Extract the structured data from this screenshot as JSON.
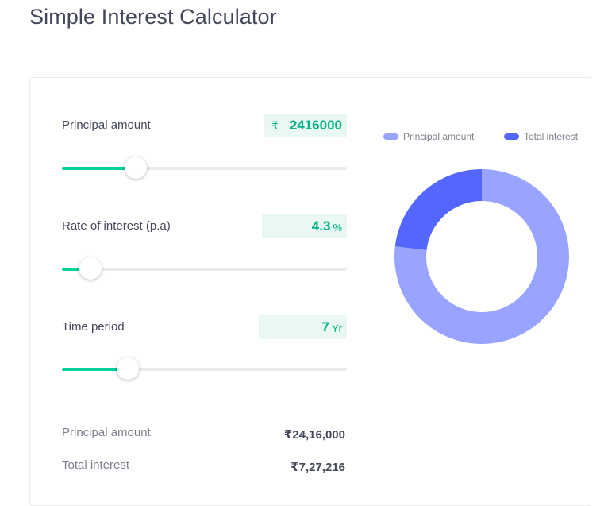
{
  "header": {
    "title": "Simple Interest Calculator"
  },
  "inputs": {
    "principal": {
      "label": "Principal amount",
      "prefix": "₹",
      "value": "2416000",
      "fraction": 0.26
    },
    "rate": {
      "label": "Rate of interest (p.a)",
      "value": "4.3",
      "suffix": "%",
      "fraction": 0.1
    },
    "time": {
      "label": "Time period",
      "value": "7",
      "suffix": "Yr",
      "fraction": 0.23
    }
  },
  "results": {
    "principal_label": "Principal amount",
    "principal_value": "₹24,16,000",
    "interest_label": "Total interest",
    "interest_value": "₹7,27,216"
  },
  "chart_data": {
    "type": "pie",
    "style": "donut",
    "legend_position": "top",
    "series": [
      {
        "name": "Principal amount",
        "value": 2416000,
        "color": "#98a4ff"
      },
      {
        "name": "Total interest",
        "value": 727216,
        "color": "#5367ff"
      }
    ]
  }
}
